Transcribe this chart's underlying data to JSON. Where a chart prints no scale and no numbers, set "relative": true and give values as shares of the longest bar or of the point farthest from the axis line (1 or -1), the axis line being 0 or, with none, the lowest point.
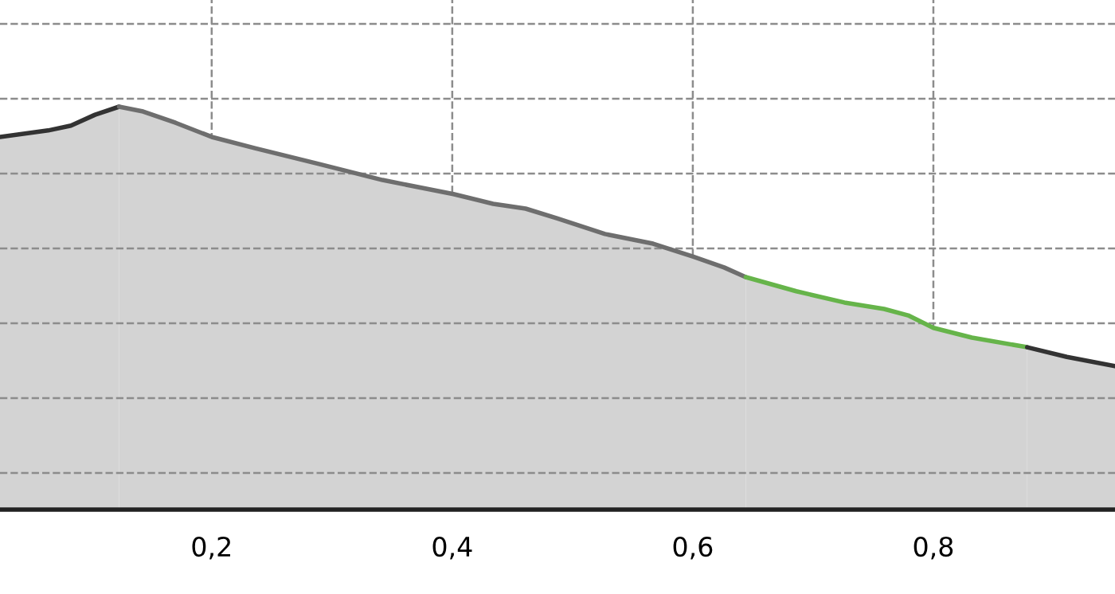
{
  "chart_data": {
    "type": "area",
    "relative": true,
    "grid": true,
    "tick_labels": "x",
    "marker": "none",
    "line_style": "solid",
    "xlim": [
      0.024,
      0.951
    ],
    "xticks": [
      {
        "value": 0.2,
        "label": "0,2"
      },
      {
        "value": 0.4,
        "label": "0,4"
      },
      {
        "value": 0.6,
        "label": "0,6"
      },
      {
        "value": 0.8,
        "label": "0,8"
      }
    ],
    "series": [
      {
        "color": "#333333",
        "x": [
          0.024,
          0.064,
          0.083,
          0.103,
          0.123
        ],
        "values": [
          0.925,
          0.941,
          0.953,
          0.98,
          1.0
        ]
      },
      {
        "color": "#6e6e6e",
        "x": [
          0.123,
          0.143,
          0.17,
          0.2,
          0.236,
          0.289,
          0.342,
          0.401,
          0.434,
          0.461,
          0.487,
          0.527,
          0.567,
          0.6,
          0.626,
          0.644
        ],
        "values": [
          1.0,
          0.988,
          0.96,
          0.925,
          0.897,
          0.858,
          0.818,
          0.783,
          0.759,
          0.747,
          0.723,
          0.684,
          0.66,
          0.628,
          0.601,
          0.577
        ]
      },
      {
        "color": "#66b44a",
        "x": [
          0.644,
          0.686,
          0.726,
          0.759,
          0.779,
          0.8,
          0.832,
          0.878
        ],
        "values": [
          0.577,
          0.542,
          0.514,
          0.498,
          0.482,
          0.451,
          0.427,
          0.403
        ]
      },
      {
        "color": "#333333",
        "x": [
          0.878,
          0.911,
          0.951
        ],
        "values": [
          0.403,
          0.379,
          0.356
        ]
      }
    ]
  }
}
